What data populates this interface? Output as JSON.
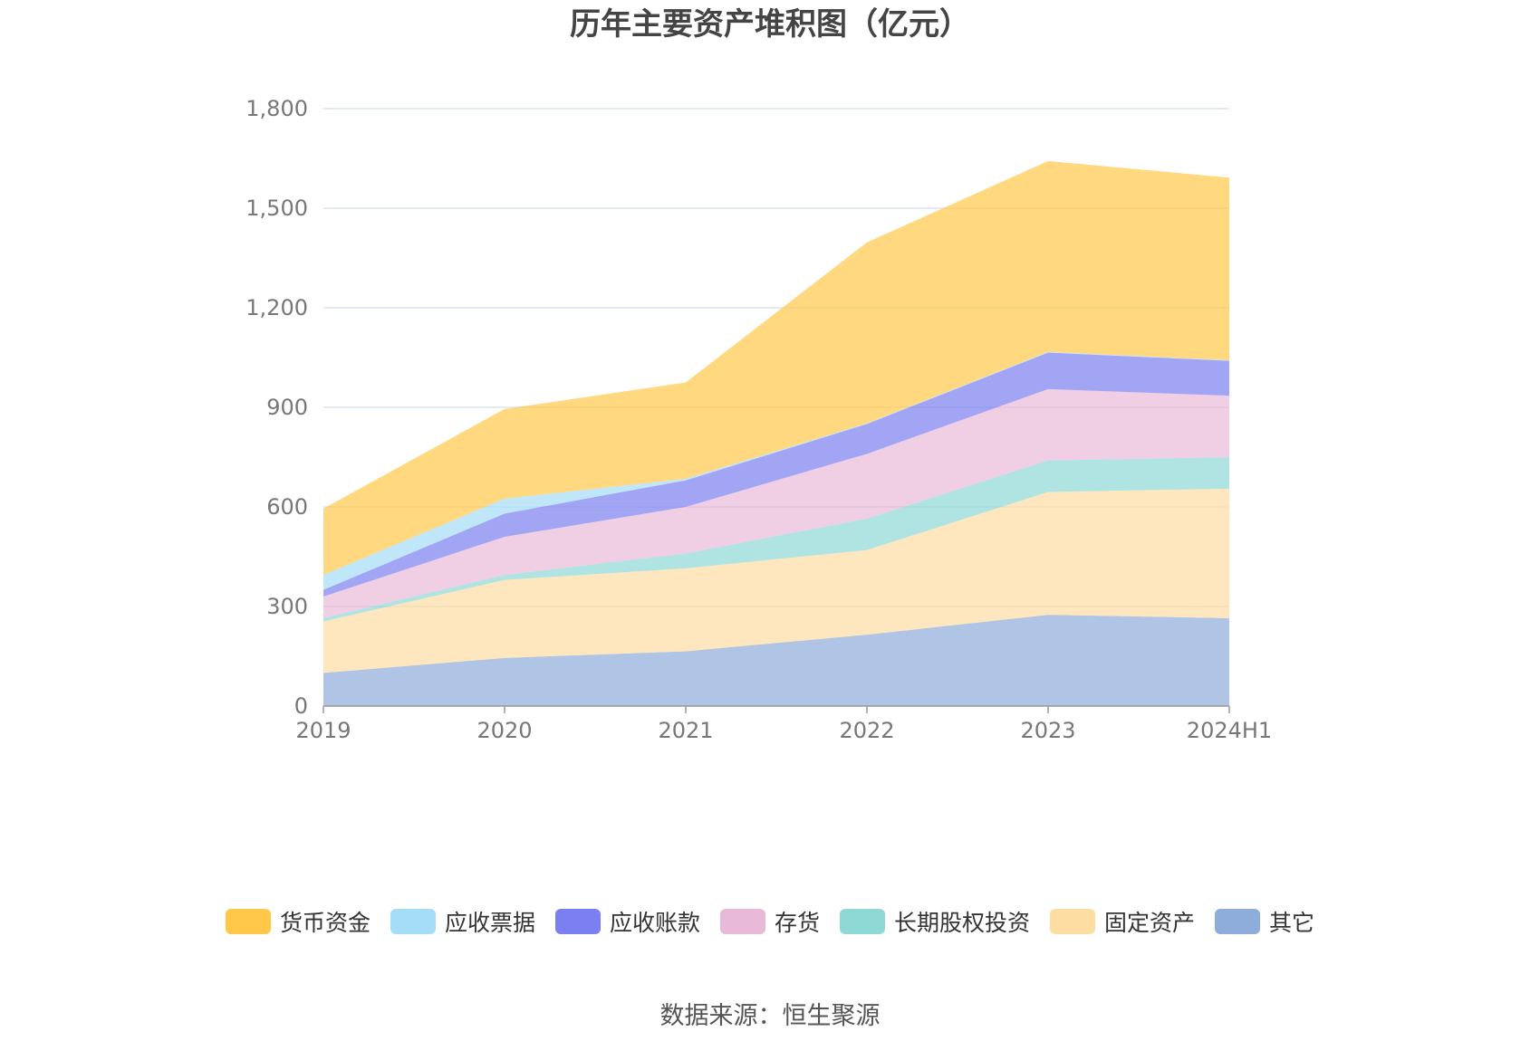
{
  "title": "历年主要资产堆积图（亿元）",
  "source": "数据来源：恒生聚源",
  "chart_data": {
    "type": "area",
    "stacked": true,
    "title": "历年主要资产堆积图（亿元）",
    "xlabel": "",
    "ylabel": "",
    "categories": [
      "2019",
      "2020",
      "2021",
      "2022",
      "2023",
      "2024H1"
    ],
    "ylim": [
      0,
      1800
    ],
    "yticks": [
      0,
      300,
      600,
      900,
      1200,
      1500,
      1800
    ],
    "ytick_labels": [
      "0",
      "300",
      "600",
      "900",
      "1,200",
      "1,500",
      "1,800"
    ],
    "grid": true,
    "legend_position": "bottom",
    "series": [
      {
        "name": "其它",
        "color": "#8EADDA",
        "values": [
          100,
          145,
          165,
          215,
          275,
          265
        ]
      },
      {
        "name": "固定资产",
        "color": "#FDDDA2",
        "values": [
          155,
          235,
          250,
          255,
          370,
          390
        ]
      },
      {
        "name": "长期股权投资",
        "color": "#8ED8D6",
        "values": [
          10,
          15,
          45,
          95,
          95,
          95
        ]
      },
      {
        "name": "存货",
        "color": "#E9B9D8",
        "values": [
          65,
          115,
          140,
          195,
          215,
          185
        ]
      },
      {
        "name": "应收账款",
        "color": "#7B7FF0",
        "values": [
          20,
          70,
          80,
          90,
          110,
          105
        ]
      },
      {
        "name": "应收票据",
        "color": "#A5DDF6",
        "values": [
          45,
          45,
          5,
          2,
          2,
          2
        ]
      },
      {
        "name": "货币资金",
        "color": "#FFC848",
        "values": [
          200,
          270,
          290,
          545,
          575,
          550
        ]
      }
    ],
    "legend_order": [
      "货币资金",
      "应收票据",
      "应收账款",
      "存货",
      "长期股权投资",
      "固定资产",
      "其它"
    ]
  }
}
